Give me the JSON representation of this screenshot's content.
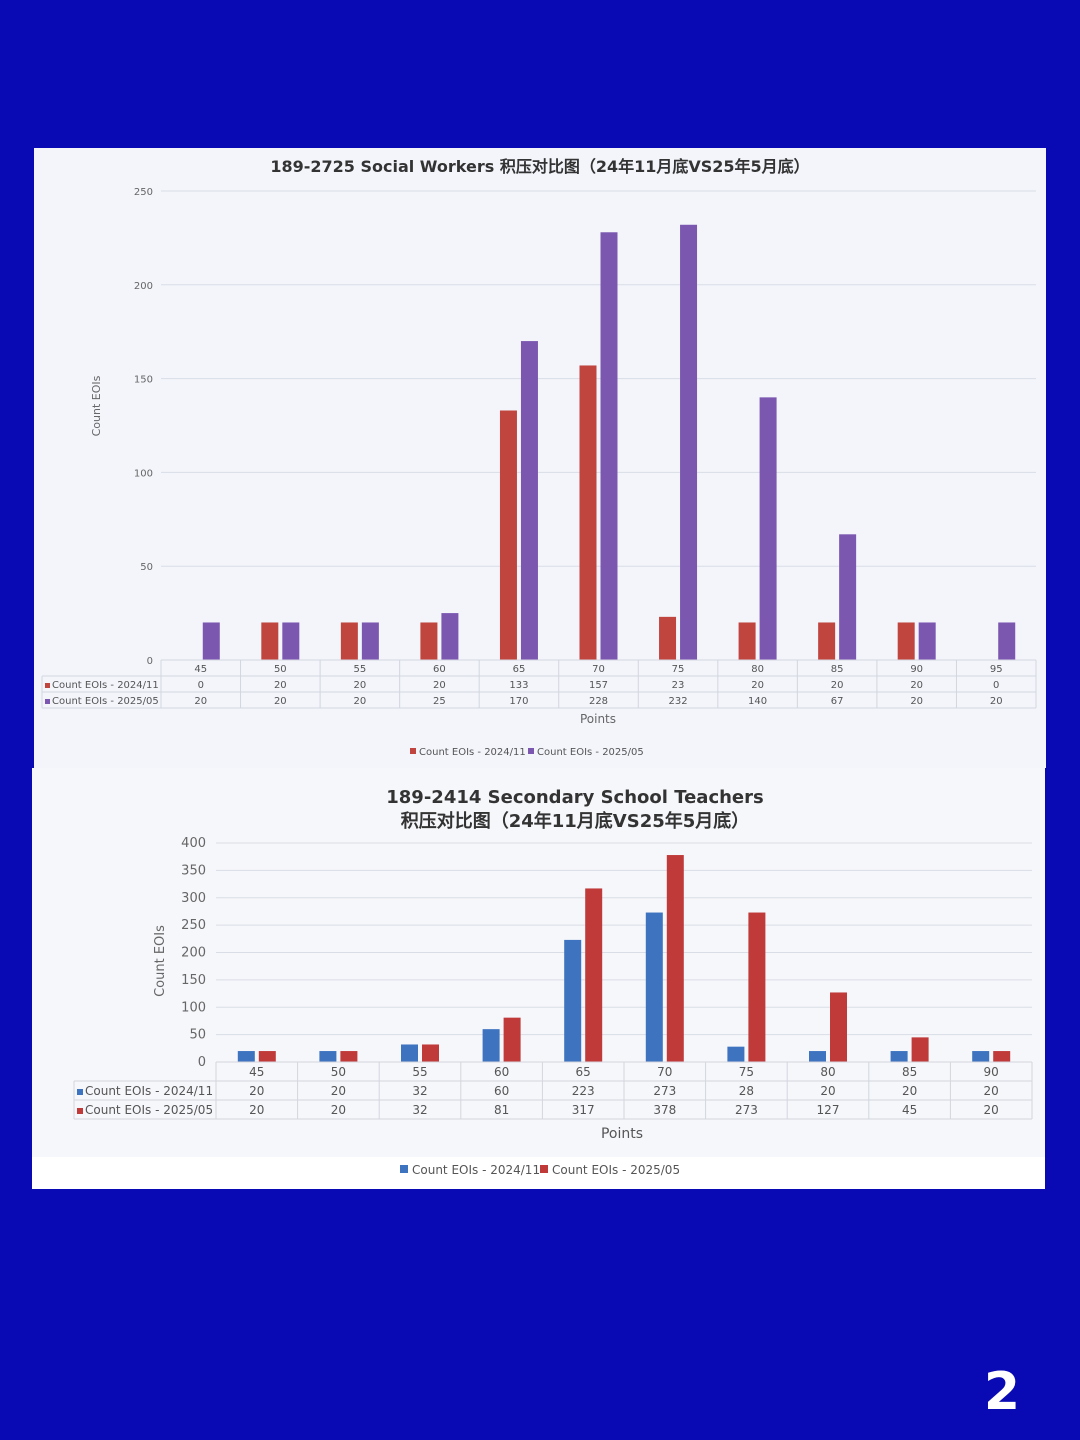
{
  "page_number": "2",
  "colors": {
    "background": "#0a0ab4",
    "red": "#c0453f",
    "purple": "#7b57b0",
    "blue": "#3d73bf",
    "red2": "#c03a3a"
  },
  "chart_data": [
    {
      "type": "bar",
      "title": "189-2725 Social Workers 积压对比图（24年11月底VS25年5月底）",
      "xlabel": "Points",
      "ylabel": "Count EOIs",
      "ylim": [
        0,
        250
      ],
      "yticks": [
        0,
        50,
        100,
        150,
        200,
        250
      ],
      "grid": true,
      "legend_position": "bottom",
      "categories": [
        "45",
        "50",
        "55",
        "60",
        "65",
        "70",
        "75",
        "80",
        "85",
        "90",
        "95"
      ],
      "series": [
        {
          "name": "Count EOIs - 2024/11",
          "color": "#c0453f",
          "values": [
            0,
            20,
            20,
            20,
            133,
            157,
            23,
            20,
            20,
            20,
            0
          ]
        },
        {
          "name": "Count EOIs - 2025/05",
          "color": "#7b57b0",
          "values": [
            20,
            20,
            20,
            25,
            170,
            228,
            232,
            140,
            67,
            20,
            20
          ]
        }
      ]
    },
    {
      "type": "bar",
      "title": "189-2414 Secondary School Teachers",
      "subtitle": "积压对比图（24年11月底VS25年5月底）",
      "xlabel": "Points",
      "ylabel": "Count EOIs",
      "ylim": [
        0,
        400
      ],
      "yticks": [
        0,
        50,
        100,
        150,
        200,
        250,
        300,
        350,
        400
      ],
      "grid": true,
      "legend_position": "bottom",
      "categories": [
        "45",
        "50",
        "55",
        "60",
        "65",
        "70",
        "75",
        "80",
        "85",
        "90"
      ],
      "series": [
        {
          "name": "Count EOIs - 2024/11",
          "color": "#3d73bf",
          "values": [
            20,
            20,
            32,
            60,
            223,
            273,
            28,
            20,
            20,
            20
          ]
        },
        {
          "name": "Count EOIs - 2025/05",
          "color": "#c03a3a",
          "values": [
            20,
            20,
            32,
            81,
            317,
            378,
            273,
            127,
            45,
            20
          ]
        }
      ]
    }
  ]
}
